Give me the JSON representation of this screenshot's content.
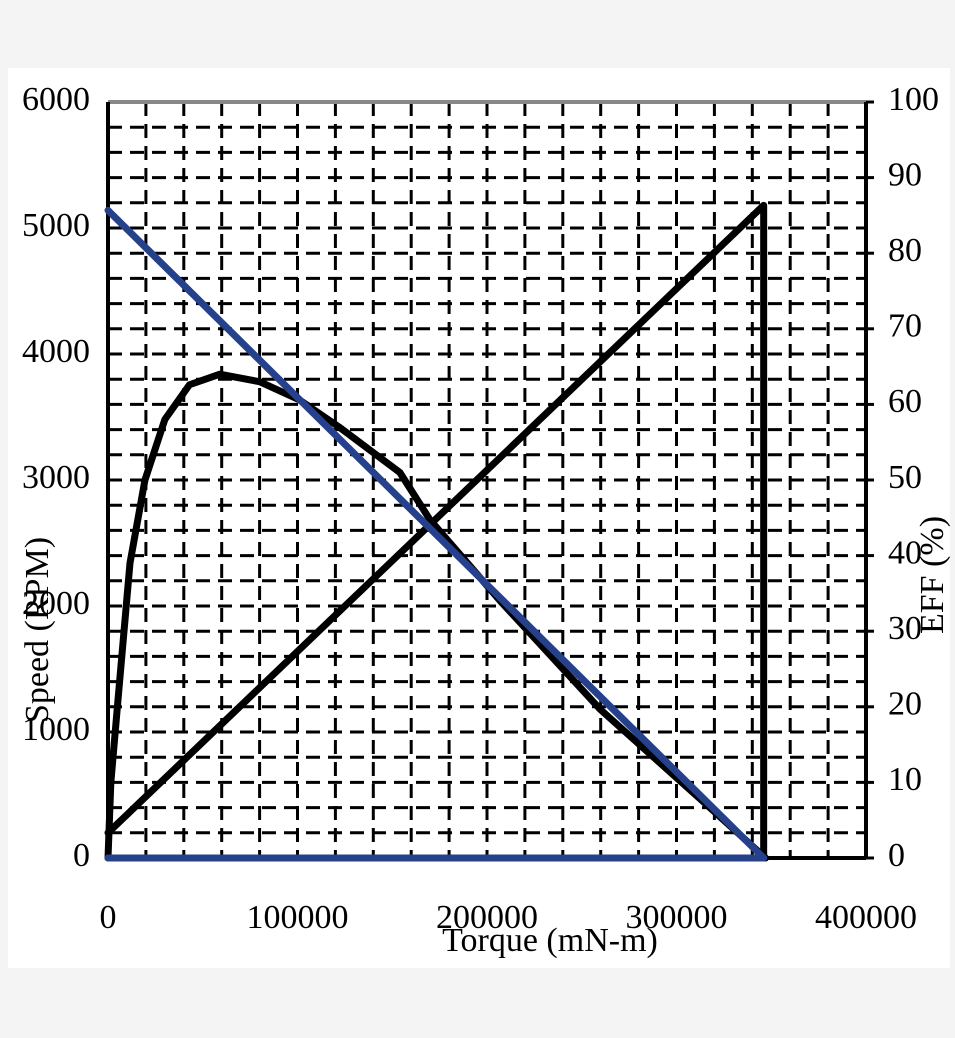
{
  "chart_data": {
    "type": "line",
    "xlabel": "Torque (mN-m)",
    "ylabel": "Speed (RPM)",
    "y2label": "EFF (%)",
    "xlim": [
      0,
      400000
    ],
    "xticks": [
      0,
      100000,
      200000,
      300000,
      400000
    ],
    "ylim": [
      0,
      6000
    ],
    "yticks": [
      0,
      1000,
      2000,
      3000,
      4000,
      5000,
      6000
    ],
    "y2lim": [
      0,
      100
    ],
    "y2ticks": [
      0,
      10,
      20,
      30,
      40,
      50,
      60,
      70,
      80,
      90,
      100
    ],
    "grid": true,
    "series": [
      {
        "color": "#000000",
        "x": [
          0,
          346000,
          346000
        ],
        "values": [
          200,
          5180,
          0
        ]
      },
      {
        "color": "#000000",
        "axis": "y2",
        "x": [
          0,
          1500,
          5300,
          11600,
          19500,
          30000,
          43000,
          59000,
          80000,
          101000,
          122000,
          154000,
          170000,
          207000,
          260000,
          313000,
          347000
        ],
        "values": [
          0,
          10,
          21,
          39,
          50,
          58,
          62.6,
          64,
          63,
          60.6,
          57,
          51,
          44.7,
          34,
          19.6,
          7.7,
          0
        ]
      },
      {
        "color": "#25418c",
        "x": [
          0,
          346000
        ],
        "values": [
          5140,
          0
        ]
      },
      {
        "color": "#25418c",
        "x": [
          0,
          346000
        ],
        "values": [
          0,
          0
        ]
      }
    ]
  }
}
